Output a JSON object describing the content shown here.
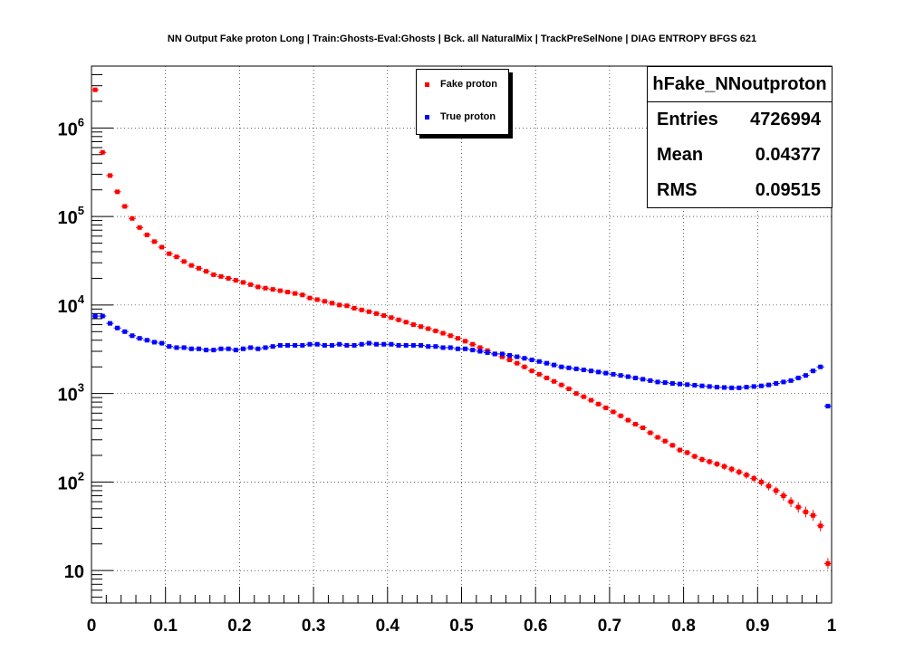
{
  "title": "NN Output Fake proton Long | Train:Ghosts-Eval:Ghosts | Bck. all NaturalMix | TrackPreSelNone | DIAG ENTROPY BFGS 621",
  "legend": {
    "entries": [
      {
        "label": "Fake proton",
        "color": "#ff0000"
      },
      {
        "label": "True proton",
        "color": "#0000ff"
      }
    ]
  },
  "stats": {
    "title": "hFake_NNoutproton",
    "rows": [
      {
        "label": "Entries",
        "value": "4726994"
      },
      {
        "label": "Mean",
        "value": "0.04377"
      },
      {
        "label": "RMS",
        "value": "0.09515"
      }
    ]
  },
  "chart_data": {
    "type": "scatter",
    "title": "NN Output Fake proton Long | Train:Ghosts-Eval:Ghosts | Bck. all NaturalMix | TrackPreSelNone | DIAG ENTROPY BFGS 621",
    "xlabel": "",
    "ylabel": "",
    "xlim": [
      0,
      1
    ],
    "ylim": [
      4.3,
      5000000
    ],
    "ylog": true,
    "grid": true,
    "legend_position": "top-center",
    "x_tick_labels": [
      "0",
      "0.1",
      "0.2",
      "0.3",
      "0.4",
      "0.5",
      "0.6",
      "0.7",
      "0.8",
      "0.9",
      "1"
    ],
    "y_tick_labels": [
      {
        "value": 10,
        "base": "10",
        "exp": ""
      },
      {
        "value": 100,
        "base": "10",
        "exp": "2"
      },
      {
        "value": 1000,
        "base": "10",
        "exp": "3"
      },
      {
        "value": 10000,
        "base": "10",
        "exp": "4"
      },
      {
        "value": 100000,
        "base": "10",
        "exp": "5"
      },
      {
        "value": 1000000,
        "base": "10",
        "exp": "6"
      }
    ],
    "series": [
      {
        "name": "Fake proton",
        "color": "#ff0000",
        "x": [
          0.005,
          0.015,
          0.025,
          0.035,
          0.045,
          0.055,
          0.065,
          0.075,
          0.085,
          0.095,
          0.105,
          0.115,
          0.125,
          0.135,
          0.145,
          0.155,
          0.165,
          0.175,
          0.185,
          0.195,
          0.205,
          0.215,
          0.225,
          0.235,
          0.245,
          0.255,
          0.265,
          0.275,
          0.285,
          0.295,
          0.305,
          0.315,
          0.325,
          0.335,
          0.345,
          0.355,
          0.365,
          0.375,
          0.385,
          0.395,
          0.405,
          0.415,
          0.425,
          0.435,
          0.445,
          0.455,
          0.465,
          0.475,
          0.485,
          0.495,
          0.505,
          0.515,
          0.525,
          0.535,
          0.545,
          0.555,
          0.565,
          0.575,
          0.585,
          0.595,
          0.605,
          0.615,
          0.625,
          0.635,
          0.645,
          0.655,
          0.665,
          0.675,
          0.685,
          0.695,
          0.705,
          0.715,
          0.725,
          0.735,
          0.745,
          0.755,
          0.765,
          0.775,
          0.785,
          0.795,
          0.805,
          0.815,
          0.825,
          0.835,
          0.845,
          0.855,
          0.865,
          0.875,
          0.885,
          0.895,
          0.905,
          0.915,
          0.925,
          0.935,
          0.945,
          0.955,
          0.965,
          0.975,
          0.985,
          0.995
        ],
        "values": [
          2700000,
          530000,
          290000,
          190000,
          130000,
          95000,
          75000,
          62000,
          52000,
          45000,
          38000,
          35000,
          31000,
          28000,
          26000,
          24000,
          22000,
          21000,
          20000,
          19000,
          18000,
          17000,
          16000,
          15500,
          15000,
          14500,
          14000,
          13500,
          13000,
          12000,
          11500,
          11000,
          10500,
          10000,
          9800,
          9200,
          8800,
          8400,
          8000,
          7600,
          7200,
          6800,
          6400,
          6000,
          5700,
          5400,
          5100,
          4800,
          4500,
          4200,
          3900,
          3600,
          3300,
          3050,
          2800,
          2600,
          2400,
          2200,
          2000,
          1800,
          1650,
          1500,
          1370,
          1250,
          1130,
          1000,
          920,
          840,
          760,
          690,
          620,
          560,
          500,
          450,
          410,
          360,
          320,
          290,
          260,
          230,
          215,
          195,
          180,
          170,
          160,
          150,
          140,
          130,
          120,
          110,
          100,
          90,
          80,
          70,
          60,
          52,
          46,
          42,
          32,
          12
        ]
      },
      {
        "name": "True proton",
        "color": "#0000ff",
        "x": [
          0.005,
          0.015,
          0.025,
          0.035,
          0.045,
          0.055,
          0.065,
          0.075,
          0.085,
          0.095,
          0.105,
          0.115,
          0.125,
          0.135,
          0.145,
          0.155,
          0.165,
          0.175,
          0.185,
          0.195,
          0.205,
          0.215,
          0.225,
          0.235,
          0.245,
          0.255,
          0.265,
          0.275,
          0.285,
          0.295,
          0.305,
          0.315,
          0.325,
          0.335,
          0.345,
          0.355,
          0.365,
          0.375,
          0.385,
          0.395,
          0.405,
          0.415,
          0.425,
          0.435,
          0.445,
          0.455,
          0.465,
          0.475,
          0.485,
          0.495,
          0.505,
          0.515,
          0.525,
          0.535,
          0.545,
          0.555,
          0.565,
          0.575,
          0.585,
          0.595,
          0.605,
          0.615,
          0.625,
          0.635,
          0.645,
          0.655,
          0.665,
          0.675,
          0.685,
          0.695,
          0.705,
          0.715,
          0.725,
          0.735,
          0.745,
          0.755,
          0.765,
          0.775,
          0.785,
          0.795,
          0.805,
          0.815,
          0.825,
          0.835,
          0.845,
          0.855,
          0.865,
          0.875,
          0.885,
          0.895,
          0.905,
          0.915,
          0.925,
          0.935,
          0.945,
          0.955,
          0.965,
          0.975,
          0.985,
          0.995
        ],
        "values": [
          7500,
          7500,
          6200,
          5500,
          5000,
          4500,
          4200,
          4000,
          3800,
          3700,
          3400,
          3300,
          3300,
          3200,
          3200,
          3100,
          3100,
          3200,
          3200,
          3100,
          3200,
          3300,
          3200,
          3300,
          3400,
          3500,
          3500,
          3500,
          3500,
          3600,
          3600,
          3500,
          3500,
          3600,
          3500,
          3500,
          3600,
          3700,
          3600,
          3600,
          3600,
          3500,
          3500,
          3500,
          3500,
          3400,
          3400,
          3300,
          3300,
          3200,
          3200,
          3100,
          3000,
          2900,
          2800,
          2800,
          2700,
          2600,
          2500,
          2400,
          2300,
          2200,
          2100,
          2000,
          1950,
          1900,
          1850,
          1800,
          1750,
          1700,
          1650,
          1600,
          1550,
          1500,
          1450,
          1400,
          1350,
          1330,
          1300,
          1280,
          1260,
          1240,
          1220,
          1200,
          1180,
          1170,
          1160,
          1160,
          1180,
          1200,
          1220,
          1250,
          1300,
          1350,
          1400,
          1500,
          1600,
          1800,
          2000,
          720
        ]
      }
    ]
  }
}
